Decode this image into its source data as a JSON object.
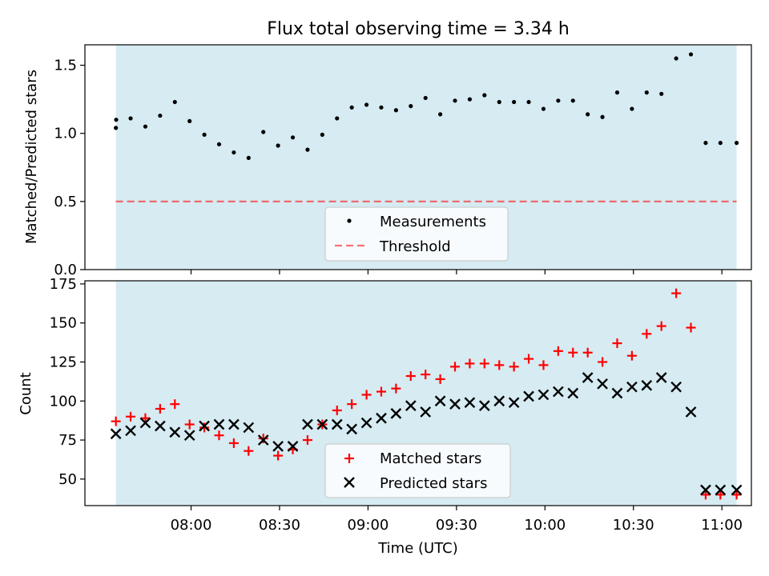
{
  "colors": {
    "band": "#add8e6",
    "threshold": "#ff0000",
    "matched": "#ff0000",
    "predicted": "#000000",
    "points": "#000000"
  },
  "chart_data": [
    {
      "type": "scatter",
      "title": "Flux total observing time = 3.34 h",
      "xlabel": "",
      "ylabel": "Matched/Predicted stars",
      "xlim_minutes": [
        444,
        670
      ],
      "ylim": [
        0,
        1.65
      ],
      "yticks": [
        "0.0",
        "0.5",
        "1.0",
        "1.5"
      ],
      "ytick_values": [
        0,
        0.5,
        1.0,
        1.5
      ],
      "observing_window_minutes": [
        454.5,
        665.0
      ],
      "threshold": 0.5,
      "legend": {
        "position": "lower center",
        "entries": [
          "Measurements",
          "Threshold"
        ]
      },
      "series": [
        {
          "name": "Measurements",
          "x_minutes": [
            454.5,
            454.6,
            459.5,
            464.5,
            469.5,
            474.5,
            479.5,
            484.5,
            489.5,
            494.5,
            499.5,
            504.5,
            509.5,
            514.5,
            519.5,
            524.5,
            529.5,
            534.5,
            539.5,
            544.5,
            549.5,
            554.5,
            559.5,
            564.5,
            569.5,
            574.5,
            579.5,
            584.5,
            589.5,
            594.5,
            599.5,
            604.5,
            609.5,
            614.5,
            619.5,
            624.5,
            629.5,
            634.5,
            639.5,
            644.5,
            649.5,
            654.5,
            659.5,
            665.0
          ],
          "values": [
            1.04,
            1.1,
            1.11,
            1.05,
            1.13,
            1.23,
            1.09,
            0.99,
            0.92,
            0.86,
            0.82,
            1.01,
            0.91,
            0.97,
            0.88,
            0.99,
            1.11,
            1.19,
            1.21,
            1.19,
            1.17,
            1.2,
            1.26,
            1.14,
            1.24,
            1.25,
            1.28,
            1.23,
            1.23,
            1.23,
            1.18,
            1.24,
            1.24,
            1.14,
            1.12,
            1.3,
            1.18,
            1.3,
            1.29,
            1.55,
            1.58,
            0.93,
            0.93,
            0.93
          ]
        }
      ]
    },
    {
      "type": "scatter",
      "title": "",
      "xlabel": "Time (UTC)",
      "ylabel": "Count",
      "xlim_minutes": [
        444,
        670
      ],
      "ylim": [
        33,
        177
      ],
      "yticks": [
        "50",
        "75",
        "100",
        "125",
        "150",
        "175"
      ],
      "ytick_values": [
        50,
        75,
        100,
        125,
        150,
        175
      ],
      "xticks": [
        "08:00",
        "08:30",
        "09:00",
        "09:30",
        "10:00",
        "10:30",
        "11:00"
      ],
      "xtick_minutes": [
        480,
        510,
        540,
        570,
        600,
        630,
        660
      ],
      "observing_window_minutes": [
        454.5,
        665.0
      ],
      "legend": {
        "position": "lower center",
        "entries": [
          "Matched stars",
          "Predicted stars"
        ]
      },
      "series": [
        {
          "name": "Matched stars",
          "marker": "+",
          "x_minutes": [
            454.5,
            459.5,
            464.5,
            469.5,
            474.5,
            479.5,
            484.5,
            489.5,
            494.5,
            499.5,
            504.5,
            509.5,
            514.5,
            519.5,
            524.5,
            529.5,
            534.5,
            539.5,
            544.5,
            549.5,
            554.5,
            559.5,
            564.5,
            569.5,
            574.5,
            579.5,
            584.5,
            589.5,
            594.5,
            599.5,
            604.5,
            609.5,
            614.5,
            619.5,
            624.5,
            629.5,
            634.5,
            639.5,
            644.5,
            649.5,
            654.5,
            659.5,
            665.0
          ],
          "values": [
            87,
            90,
            89,
            95,
            98,
            85,
            83,
            78,
            73,
            68,
            76,
            65,
            69,
            75,
            85,
            94,
            98,
            104,
            106,
            108,
            116,
            117,
            114,
            122,
            124,
            124,
            123,
            122,
            127,
            123,
            132,
            131,
            131,
            125,
            137,
            129,
            143,
            148,
            169,
            147,
            40,
            40,
            40
          ]
        },
        {
          "name": "Predicted stars",
          "marker": "x",
          "x_minutes": [
            454.5,
            459.5,
            464.5,
            469.5,
            474.5,
            479.5,
            484.5,
            489.5,
            494.5,
            499.5,
            504.5,
            509.5,
            514.5,
            519.5,
            524.5,
            529.5,
            534.5,
            539.5,
            544.5,
            549.5,
            554.5,
            559.5,
            564.5,
            569.5,
            574.5,
            579.5,
            584.5,
            589.5,
            594.5,
            599.5,
            604.5,
            609.5,
            614.5,
            619.5,
            624.5,
            629.5,
            634.5,
            639.5,
            644.5,
            649.5,
            654.5,
            659.5,
            665.0
          ],
          "values": [
            79,
            81,
            86,
            84,
            80,
            78,
            84,
            85,
            85,
            83,
            75,
            71,
            71,
            85,
            85,
            85,
            82,
            86,
            89,
            92,
            97,
            93,
            100,
            98,
            99,
            97,
            100,
            99,
            103,
            104,
            106,
            105,
            115,
            111,
            105,
            109,
            110,
            115,
            109,
            93,
            43,
            43,
            43
          ]
        }
      ]
    }
  ]
}
